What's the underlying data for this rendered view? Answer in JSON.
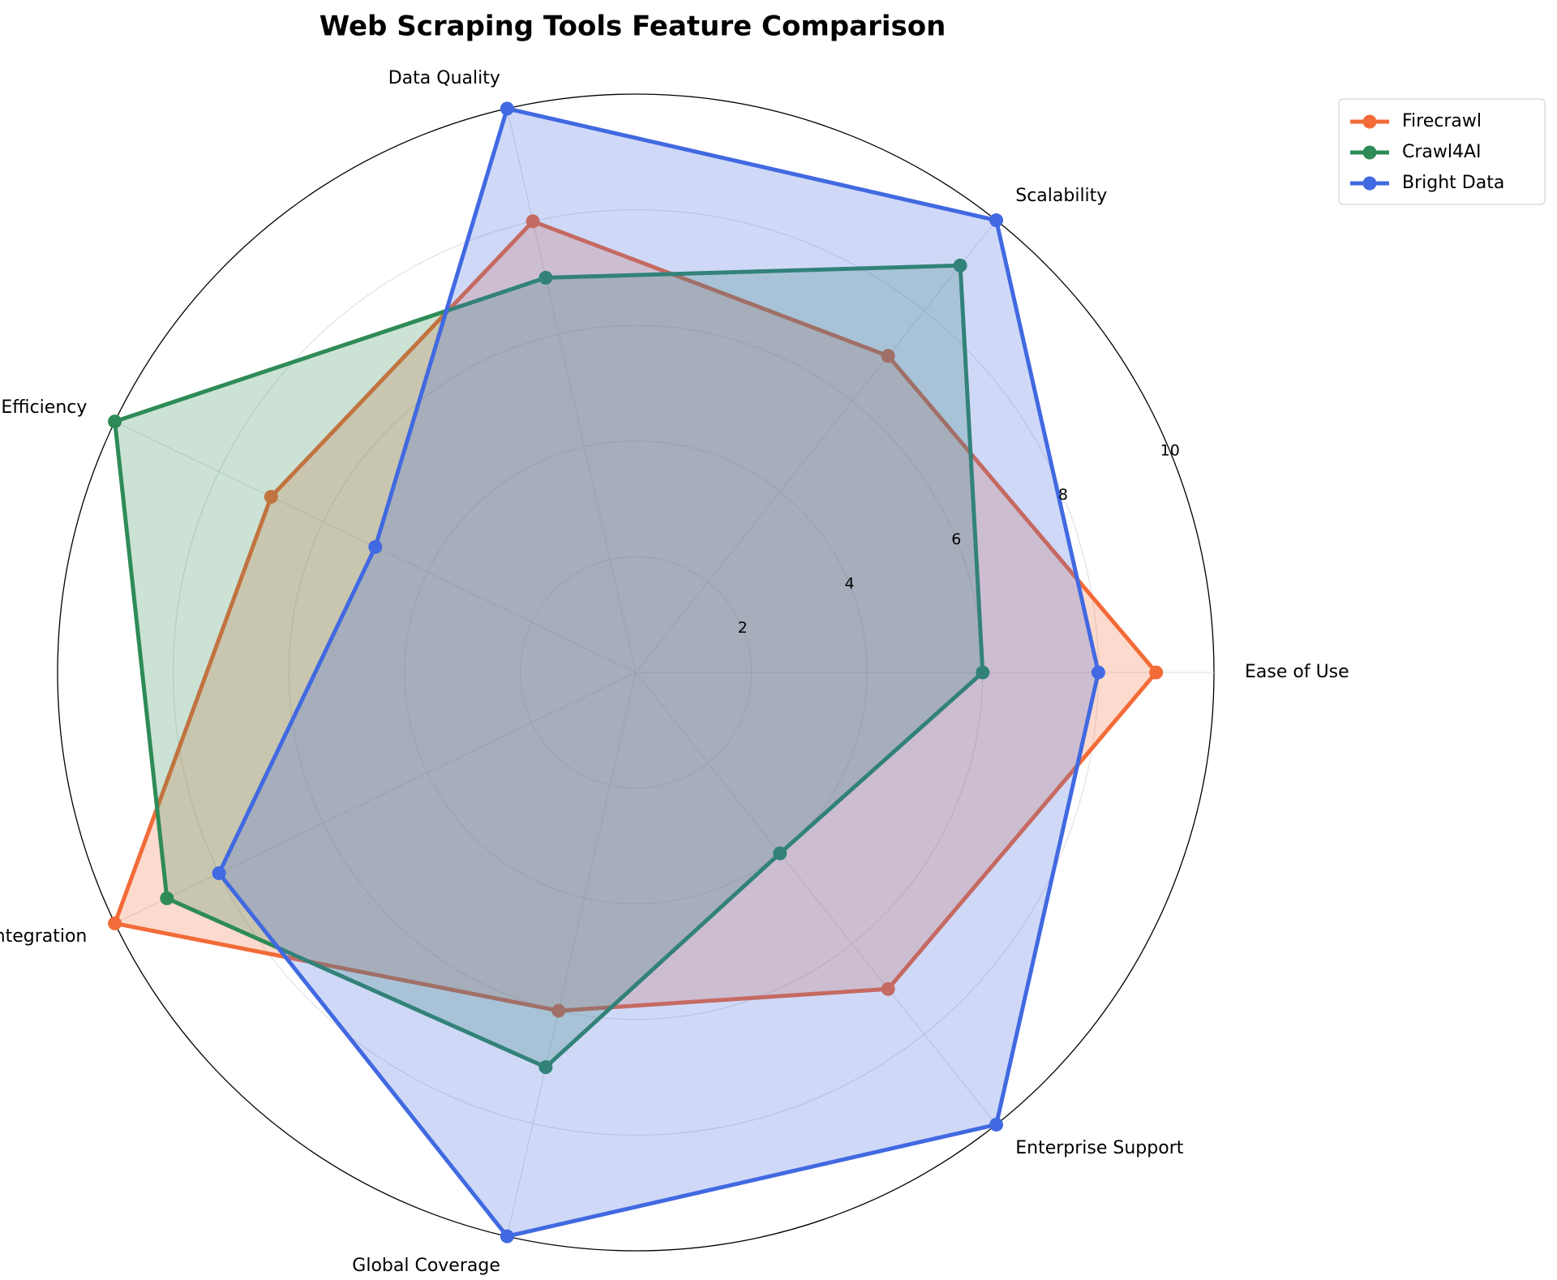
{
  "chart_data": {
    "type": "radar",
    "title": "Web Scraping Tools Feature Comparison",
    "categories": [
      "Ease of Use",
      "Scalability",
      "Data Quality",
      "Cost Efficiency",
      "AI Integration",
      "Global Coverage",
      "Enterprise Support"
    ],
    "series": [
      {
        "name": "Firecrawl",
        "color": "#f26b38",
        "values": [
          9,
          7,
          8,
          7,
          10,
          6,
          7
        ]
      },
      {
        "name": "Crawl4AI",
        "color": "#2e8b57",
        "values": [
          6,
          9,
          7,
          10,
          9,
          7,
          4
        ]
      },
      {
        "name": "Bright Data",
        "color": "#4169e1",
        "values": [
          8,
          10,
          10,
          5,
          8,
          10,
          10
        ]
      }
    ],
    "rlim": [
      0,
      10
    ],
    "rticks": [
      2,
      4,
      6,
      8,
      10
    ],
    "grid": true,
    "legend": "upper right"
  }
}
